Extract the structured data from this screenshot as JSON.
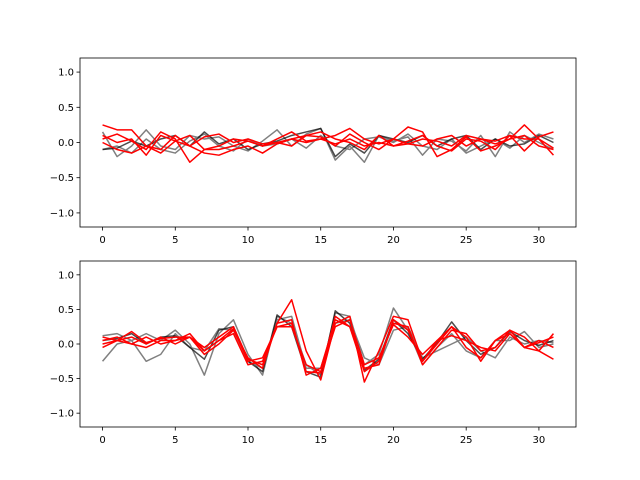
{
  "chart_data": [
    {
      "type": "line",
      "xlim": [
        -1.55,
        32.55
      ],
      "ylim": [
        -1.2,
        1.2
      ],
      "xticks": [
        0,
        5,
        10,
        15,
        20,
        25,
        30
      ],
      "xtick_labels": [
        "0",
        "5",
        "10",
        "15",
        "20",
        "25",
        "30"
      ],
      "yticks": [
        -1.0,
        -0.5,
        0.0,
        0.5,
        1.0
      ],
      "ytick_labels": [
        "−1.0",
        "−0.5",
        "0.0",
        "0.5",
        "1.0"
      ],
      "grid": false,
      "x": [
        0,
        1,
        2,
        3,
        4,
        5,
        6,
        7,
        8,
        9,
        10,
        11,
        12,
        13,
        14,
        15,
        16,
        17,
        18,
        19,
        20,
        21,
        22,
        23,
        24,
        25,
        26,
        27,
        28,
        29,
        30,
        31
      ],
      "series": [
        {
          "color": "#808080",
          "values": [
            0.15,
            -0.2,
            -0.05,
            0.18,
            -0.05,
            -0.1,
            0.1,
            0.05,
            0.08,
            -0.05,
            -0.12,
            0.02,
            0.18,
            -0.05,
            0.12,
            0.2,
            -0.25,
            -0.05,
            -0.28,
            0.1,
            0.02,
            0.08,
            -0.18,
            0.05,
            0.02,
            -0.12,
            0.1,
            -0.2,
            0.15,
            0.0,
            0.12,
            0.05
          ]
        },
        {
          "color": "#808080",
          "values": [
            -0.1,
            -0.05,
            -0.15,
            0.05,
            -0.1,
            -0.15,
            0.02,
            0.12,
            -0.05,
            -0.12,
            0.05,
            -0.05,
            -0.02,
            0.05,
            -0.08,
            0.1,
            -0.05,
            -0.1,
            0.05,
            0.08,
            0.0,
            0.12,
            -0.05,
            -0.1,
            0.05,
            -0.15,
            -0.05,
            0.05,
            -0.08,
            0.1,
            0.0,
            -0.1
          ]
        },
        {
          "color": "#000000",
          "alpha": 0.7,
          "values": [
            -0.1,
            -0.08,
            0.02,
            -0.05,
            0.05,
            0.1,
            -0.05,
            0.15,
            -0.02,
            0.05,
            -0.1,
            -0.02,
            0.02,
            0.1,
            0.15,
            0.2,
            -0.2,
            -0.02,
            -0.15,
            0.1,
            0.05,
            0.0,
            0.1,
            -0.05,
            0.05,
            0.1,
            -0.1,
            0.05,
            -0.05,
            -0.02,
            0.1,
            0.0
          ]
        },
        {
          "color": "#ff0000",
          "values": [
            0.25,
            0.18,
            0.18,
            -0.05,
            -0.15,
            0.02,
            0.1,
            -0.1,
            -0.05,
            0.05,
            0.02,
            -0.05,
            0.05,
            0.15,
            0.02,
            0.05,
            0.1,
            0.2,
            0.05,
            -0.02,
            0.05,
            0.22,
            0.15,
            -0.2,
            -0.1,
            0.08,
            -0.12,
            -0.05,
            0.05,
            0.25,
            0.05,
            -0.18
          ]
        },
        {
          "color": "#ff0000",
          "values": [
            0.05,
            0.12,
            0.02,
            -0.1,
            0.15,
            0.05,
            -0.28,
            -0.1,
            -0.1,
            -0.05,
            0.02,
            -0.05,
            0.0,
            0.05,
            0.1,
            0.15,
            0.05,
            0.0,
            -0.1,
            0.1,
            -0.05,
            0.02,
            0.1,
            -0.05,
            -0.12,
            0.05,
            0.02,
            -0.1,
            0.1,
            -0.12,
            0.08,
            0.15
          ]
        },
        {
          "color": "#ff0000",
          "values": [
            0.0,
            -0.1,
            -0.15,
            -0.05,
            -0.1,
            0.1,
            -0.05,
            -0.15,
            -0.18,
            -0.1,
            -0.05,
            -0.15,
            -0.02,
            0.05,
            0.0,
            0.05,
            -0.02,
            0.05,
            -0.05,
            0.0,
            -0.05,
            -0.02,
            0.05,
            0.02,
            -0.05,
            0.1,
            0.05,
            -0.02,
            0.05,
            0.1,
            -0.05,
            -0.1
          ]
        },
        {
          "color": "#ff0000",
          "values": [
            0.1,
            0.0,
            0.05,
            -0.18,
            0.1,
            0.02,
            -0.05,
            0.08,
            0.12,
            0.0,
            0.05,
            -0.02,
            0.0,
            -0.05,
            0.1,
            0.08,
            -0.05,
            0.12,
            0.0,
            -0.1,
            0.05,
            -0.02,
            -0.05,
            0.05,
            0.1,
            -0.05,
            0.05,
            0.02,
            0.1,
            0.05,
            0.05,
            -0.08
          ]
        }
      ]
    },
    {
      "type": "line",
      "xlim": [
        -1.55,
        32.55
      ],
      "ylim": [
        -1.2,
        1.2
      ],
      "xticks": [
        0,
        5,
        10,
        15,
        20,
        25,
        30
      ],
      "xtick_labels": [
        "0",
        "5",
        "10",
        "15",
        "20",
        "25",
        "30"
      ],
      "yticks": [
        -1.0,
        -0.5,
        0.0,
        0.5,
        1.0
      ],
      "ytick_labels": [
        "−1.0",
        "−0.5",
        "0.0",
        "0.5",
        "1.0"
      ],
      "grid": false,
      "x": [
        0,
        1,
        2,
        3,
        4,
        5,
        6,
        7,
        8,
        9,
        10,
        11,
        12,
        13,
        14,
        15,
        16,
        17,
        18,
        19,
        20,
        21,
        22,
        23,
        24,
        25,
        26,
        27,
        28,
        29,
        30,
        31
      ],
      "series": [
        {
          "color": "#808080",
          "values": [
            0.12,
            0.15,
            0.05,
            0.15,
            0.05,
            0.2,
            0.0,
            -0.45,
            0.15,
            0.35,
            -0.15,
            -0.45,
            0.4,
            0.3,
            -0.3,
            -0.45,
            0.45,
            0.4,
            -0.3,
            -0.15,
            0.52,
            0.2,
            -0.3,
            -0.05,
            0.15,
            -0.1,
            -0.2,
            0.05,
            0.05,
            0.18,
            -0.05,
            0.0
          ]
        },
        {
          "color": "#808080",
          "values": [
            -0.25,
            0.0,
            0.05,
            -0.25,
            -0.15,
            0.15,
            -0.05,
            -0.1,
            0.22,
            0.2,
            -0.25,
            -0.35,
            0.35,
            0.4,
            -0.35,
            -0.35,
            0.3,
            0.35,
            -0.2,
            -0.3,
            0.2,
            0.25,
            -0.2,
            -0.1,
            0.0,
            0.1,
            -0.1,
            -0.2,
            0.1,
            0.0,
            0.05,
            0.02
          ]
        },
        {
          "color": "#000000",
          "alpha": 0.7,
          "values": [
            0.05,
            0.08,
            0.15,
            0.0,
            0.1,
            0.12,
            -0.05,
            -0.22,
            0.2,
            0.25,
            -0.25,
            -0.4,
            0.42,
            0.25,
            -0.4,
            -0.48,
            0.48,
            0.3,
            -0.38,
            -0.22,
            0.35,
            0.15,
            -0.22,
            0.02,
            0.32,
            0.05,
            -0.15,
            -0.05,
            0.18,
            0.05,
            -0.02,
            0.05
          ]
        },
        {
          "color": "#ff0000",
          "values": [
            0.05,
            0.1,
            0.0,
            -0.05,
            0.05,
            0.05,
            0.1,
            -0.05,
            0.1,
            0.25,
            -0.22,
            -0.3,
            0.3,
            0.64,
            -0.1,
            -0.52,
            0.3,
            0.4,
            -0.55,
            -0.1,
            0.4,
            0.35,
            -0.25,
            0.0,
            0.25,
            0.1,
            -0.25,
            0.05,
            0.2,
            -0.05,
            -0.1,
            -0.22
          ]
        },
        {
          "color": "#ff0000",
          "values": [
            0.0,
            0.05,
            0.18,
            0.02,
            0.08,
            0.1,
            0.1,
            -0.1,
            0.05,
            0.15,
            -0.3,
            -0.25,
            0.25,
            0.25,
            -0.3,
            -0.4,
            0.25,
            0.35,
            -0.3,
            -0.2,
            0.28,
            0.1,
            -0.15,
            0.05,
            0.25,
            -0.05,
            -0.2,
            0.05,
            0.15,
            -0.05,
            0.02,
            0.1
          ]
        },
        {
          "color": "#ff0000",
          "values": [
            -0.05,
            0.05,
            0.1,
            0.0,
            0.1,
            0.0,
            0.1,
            -0.15,
            0.0,
            0.2,
            -0.2,
            -0.35,
            0.3,
            0.35,
            -0.45,
            -0.35,
            0.35,
            0.25,
            -0.4,
            -0.25,
            0.3,
            0.25,
            -0.3,
            -0.05,
            0.2,
            0.15,
            -0.1,
            -0.05,
            0.2,
            0.1,
            -0.1,
            0.15
          ]
        },
        {
          "color": "#ff0000",
          "values": [
            0.1,
            0.05,
            0.0,
            0.1,
            0.0,
            0.05,
            0.15,
            -0.1,
            0.05,
            0.22,
            -0.25,
            -0.2,
            0.25,
            0.3,
            -0.4,
            -0.42,
            0.4,
            0.25,
            -0.35,
            -0.3,
            0.35,
            0.2,
            -0.25,
            0.05,
            0.12,
            0.05,
            -0.05,
            -0.1,
            0.15,
            -0.05,
            0.05,
            -0.05
          ]
        }
      ]
    }
  ]
}
